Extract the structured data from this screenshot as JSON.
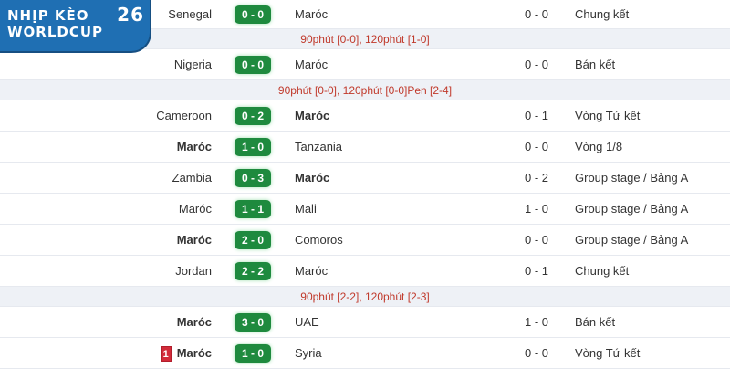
{
  "logo": {
    "line1": "NHỊP KÈO",
    "line2": "WORLDCUP",
    "badge": "26",
    "colors": {
      "background": "#1f6fb3"
    }
  },
  "colors": {
    "score_badge": "#1e8a3e",
    "note_text": "#c0392b",
    "red_card": "#d22b3a"
  },
  "matches": [
    {
      "home": "Senegal",
      "score": "0 - 0",
      "away": "Maróc",
      "ht": "0 - 0",
      "round": "Chung kết",
      "note": "90phút [0-0], 120phút [1-0]"
    },
    {
      "home": "Nigeria",
      "score": "0 - 0",
      "away": "Maróc",
      "ht": "0 - 0",
      "round": "Bán kết",
      "note": "90phút [0-0], 120phút [0-0]Pen [2-4]"
    },
    {
      "home": "Cameroon",
      "score": "0 - 2",
      "away": "Maróc",
      "ht": "0 - 1",
      "round": "Vòng Tứ kết"
    },
    {
      "home": "Maróc",
      "score": "1 - 0",
      "away": "Tanzania",
      "ht": "0 - 0",
      "round": "Vòng 1/8"
    },
    {
      "home": "Zambia",
      "score": "0 - 3",
      "away": "Maróc",
      "ht": "0 - 2",
      "round": "Group stage / Bảng A"
    },
    {
      "home": "Maróc",
      "score": "1 - 1",
      "away": "Mali",
      "ht": "1 - 0",
      "round": "Group stage / Bảng A"
    },
    {
      "home": "Maróc",
      "score": "2 - 0",
      "away": "Comoros",
      "ht": "0 - 0",
      "round": "Group stage / Bảng A"
    },
    {
      "home": "Jordan",
      "score": "2 - 2",
      "away": "Maróc",
      "ht": "0 - 1",
      "round": "Chung kết",
      "note": "90phút [2-2], 120phút [2-3]"
    },
    {
      "home": "Maróc",
      "score": "3 - 0",
      "away": "UAE",
      "ht": "1 - 0",
      "round": "Bán kết"
    },
    {
      "home": "Maróc",
      "score": "1 - 0",
      "away": "Syria",
      "ht": "0 - 0",
      "round": "Vòng Tứ kết",
      "home_red_cards": "1"
    }
  ]
}
